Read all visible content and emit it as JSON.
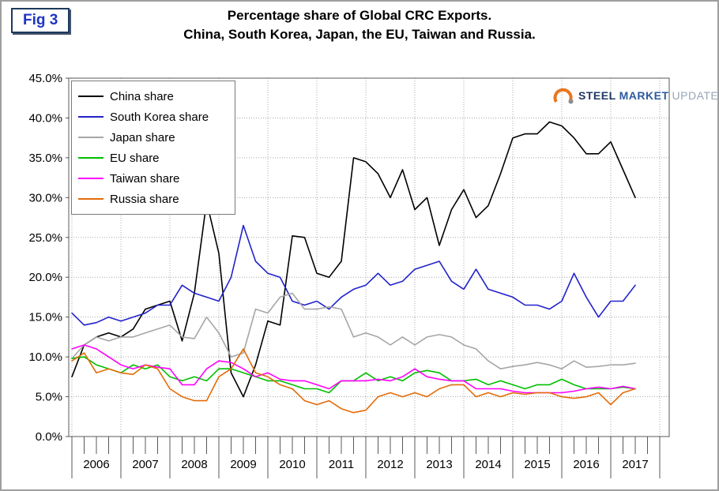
{
  "fig_label": "Fig 3",
  "title": {
    "line1": "Percentage share of Global CRC Exports.",
    "line2": "China, South Korea, Japan, the EU, Taiwan and Russia."
  },
  "logo": {
    "steel": "STEEL",
    "market": "MARKET",
    "update": "UPDATE",
    "accent_color": "#e87722"
  },
  "chart_data": {
    "type": "line",
    "title": "Percentage share of Global CRC Exports. China, South Korea, Japan, the EU, Taiwan and Russia.",
    "x_start": 2006,
    "x_step": 0.25,
    "x_axis_years": [
      "2006",
      "2007",
      "2008",
      "2009",
      "2010",
      "2011",
      "2012",
      "2013",
      "2014",
      "2015",
      "2016",
      "2017"
    ],
    "gridline_years": [
      2006,
      2007,
      2008,
      2009,
      2010,
      2011,
      2012,
      2013,
      2014,
      2015,
      2016,
      2017,
      2018
    ],
    "ylim": [
      0,
      45
    ],
    "grid": "dotted",
    "legend_position": "top-left",
    "y_ticks": [
      {
        "value": 45,
        "label": "45.0%"
      },
      {
        "value": 40,
        "label": "40.0%"
      },
      {
        "value": 35,
        "label": "35.0%"
      },
      {
        "value": 30,
        "label": "30.0%"
      },
      {
        "value": 25,
        "label": "25.0%"
      },
      {
        "value": 20,
        "label": "20.0%"
      },
      {
        "value": 15,
        "label": "15.0%"
      },
      {
        "value": 10,
        "label": "10.0%"
      },
      {
        "value": 5,
        "label": "5.0%"
      },
      {
        "value": 0,
        "label": "0.0%"
      }
    ],
    "series": [
      {
        "name": "China share",
        "color": "#000000",
        "values": [
          7.5,
          11.5,
          12.5,
          13.0,
          12.5,
          13.5,
          16.0,
          16.5,
          17.0,
          12.0,
          18.0,
          29.5,
          23.0,
          8.0,
          5.0,
          9.0,
          14.5,
          14.0,
          25.2,
          25.0,
          20.5,
          20.0,
          22.0,
          35.0,
          34.5,
          33.0,
          30.0,
          33.5,
          28.5,
          30.0,
          24.0,
          28.5,
          31.0,
          27.5,
          29.0,
          33.0,
          37.5,
          38.0,
          38.0,
          39.5,
          39.0,
          37.5,
          35.5,
          35.5,
          37.0,
          33.5,
          30.0
        ]
      },
      {
        "name": "South Korea share",
        "color": "#2222cc",
        "values": [
          15.5,
          14.0,
          14.3,
          15.0,
          14.5,
          15.0,
          15.5,
          16.5,
          16.5,
          19.0,
          18.0,
          17.5,
          17.0,
          20.0,
          26.5,
          22.0,
          20.5,
          20.0,
          17.0,
          16.5,
          17.0,
          16.0,
          17.5,
          18.5,
          19.0,
          20.5,
          19.0,
          19.5,
          21.0,
          21.5,
          22.0,
          19.5,
          18.5,
          21.0,
          18.5,
          18.0,
          17.5,
          16.5,
          16.5,
          16.0,
          17.0,
          20.5,
          17.5,
          15.0,
          17.0,
          17.0,
          19.0
        ]
      },
      {
        "name": "Japan share",
        "color": "#a6a6a6",
        "values": [
          9.8,
          11.5,
          12.5,
          12.0,
          12.5,
          12.5,
          13.0,
          13.5,
          14.0,
          12.5,
          12.3,
          15.0,
          13.0,
          10.0,
          10.5,
          16.0,
          15.5,
          17.5,
          18.0,
          16.0,
          16.0,
          16.3,
          16.0,
          12.5,
          13.0,
          12.5,
          11.5,
          12.5,
          11.5,
          12.5,
          12.8,
          12.5,
          11.5,
          11.0,
          9.5,
          8.5,
          8.8,
          9.0,
          9.3,
          9.0,
          8.5,
          9.5,
          8.7,
          8.8,
          9.0,
          9.0,
          9.2
        ]
      },
      {
        "name": "EU share",
        "color": "#00c000",
        "values": [
          9.8,
          10.0,
          9.0,
          8.5,
          8.0,
          9.0,
          8.5,
          9.0,
          7.5,
          7.0,
          7.5,
          7.0,
          8.5,
          8.5,
          8.0,
          7.5,
          7.0,
          7.0,
          6.5,
          6.0,
          6.0,
          5.5,
          7.0,
          7.0,
          8.0,
          7.0,
          7.5,
          7.0,
          8.0,
          8.3,
          8.0,
          7.0,
          7.0,
          7.2,
          6.5,
          7.0,
          6.5,
          6.0,
          6.5,
          6.5,
          7.2,
          6.5,
          6.0,
          6.0,
          6.0,
          6.2,
          6.0
        ]
      },
      {
        "name": "Taiwan share",
        "color": "#ff00ff",
        "values": [
          11.0,
          11.5,
          11.0,
          10.0,
          9.0,
          8.5,
          9.0,
          8.7,
          8.5,
          6.5,
          6.5,
          8.5,
          9.5,
          9.3,
          8.5,
          7.5,
          8.0,
          7.2,
          7.0,
          7.0,
          6.5,
          6.0,
          7.0,
          7.0,
          7.0,
          7.2,
          7.0,
          7.5,
          8.5,
          7.5,
          7.2,
          7.0,
          7.0,
          6.0,
          6.0,
          6.0,
          5.7,
          5.5,
          5.5,
          5.5,
          5.5,
          5.7,
          6.0,
          6.2,
          6.0,
          6.3,
          6.0
        ]
      },
      {
        "name": "Russia share",
        "color": "#e36c09",
        "values": [
          9.5,
          10.5,
          8.0,
          8.5,
          8.0,
          7.8,
          9.0,
          8.5,
          6.0,
          5.0,
          4.5,
          4.5,
          7.5,
          8.5,
          11.0,
          8.0,
          7.5,
          6.5,
          6.0,
          4.5,
          4.0,
          4.5,
          3.5,
          3.0,
          3.3,
          5.0,
          5.5,
          5.0,
          5.5,
          5.0,
          6.0,
          6.5,
          6.5,
          5.0,
          5.5,
          5.0,
          5.5,
          5.3,
          5.5,
          5.5,
          5.0,
          4.8,
          5.0,
          5.5,
          4.0,
          5.5,
          6.0
        ]
      }
    ]
  }
}
